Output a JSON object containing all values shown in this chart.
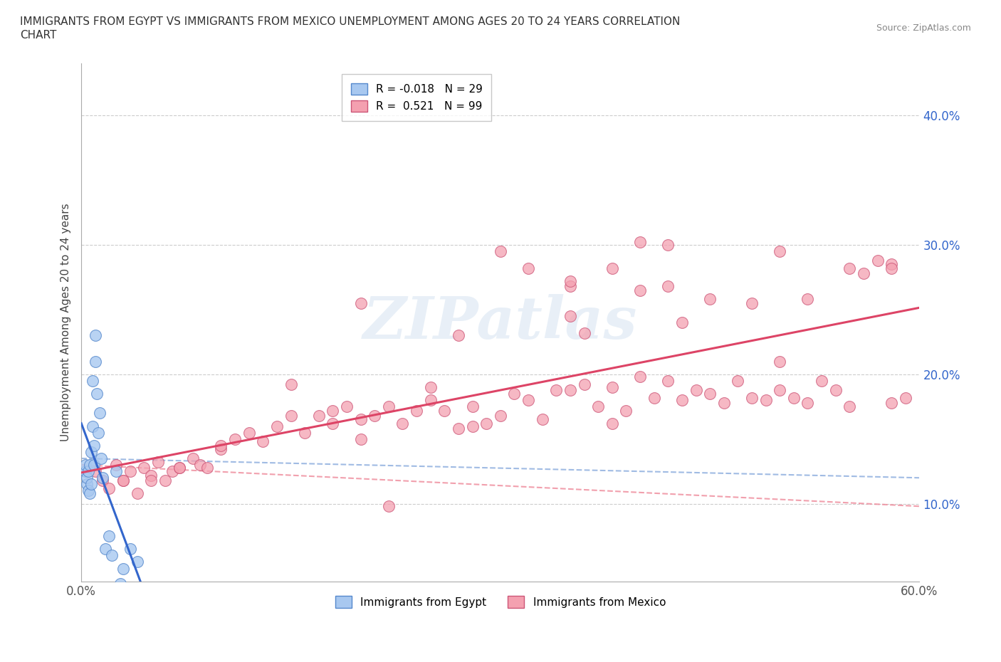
{
  "title_line1": "IMMIGRANTS FROM EGYPT VS IMMIGRANTS FROM MEXICO UNEMPLOYMENT AMONG AGES 20 TO 24 YEARS CORRELATION",
  "title_line2": "CHART",
  "source": "Source: ZipAtlas.com",
  "ylabel": "Unemployment Among Ages 20 to 24 years",
  "xlim": [
    0.0,
    0.6
  ],
  "ylim": [
    0.04,
    0.44
  ],
  "yticks": [
    0.1,
    0.2,
    0.3,
    0.4
  ],
  "ytick_labels": [
    "10.0%",
    "20.0%",
    "30.0%",
    "40.0%"
  ],
  "xticks": [
    0.0,
    0.1,
    0.2,
    0.3,
    0.4,
    0.5,
    0.6
  ],
  "egypt_color": "#a8c8f0",
  "egypt_edge_color": "#5588cc",
  "mexico_color": "#f4a0b0",
  "mexico_edge_color": "#cc5577",
  "egypt_line_color": "#3366cc",
  "mexico_line_color": "#dd4466",
  "egypt_dash_color": "#88aadd",
  "mexico_dash_color": "#ee8899",
  "legend_egypt_label": "R = -0.018   N = 29",
  "legend_mexico_label": "R =  0.521   N = 99",
  "watermark_text": "ZIPatlas",
  "egypt_x": [
    0.003,
    0.003,
    0.004,
    0.004,
    0.005,
    0.005,
    0.006,
    0.006,
    0.007,
    0.007,
    0.008,
    0.008,
    0.009,
    0.009,
    0.01,
    0.01,
    0.011,
    0.012,
    0.013,
    0.014,
    0.015,
    0.017,
    0.02,
    0.022,
    0.025,
    0.028,
    0.03,
    0.035,
    0.04
  ],
  "egypt_y": [
    0.125,
    0.13,
    0.115,
    0.12,
    0.11,
    0.125,
    0.108,
    0.13,
    0.115,
    0.14,
    0.16,
    0.195,
    0.13,
    0.145,
    0.21,
    0.23,
    0.185,
    0.155,
    0.17,
    0.135,
    0.12,
    0.065,
    0.075,
    0.06,
    0.125,
    0.038,
    0.05,
    0.065,
    0.055
  ],
  "mexico_x": [
    0.01,
    0.015,
    0.02,
    0.025,
    0.03,
    0.035,
    0.04,
    0.045,
    0.05,
    0.055,
    0.06,
    0.065,
    0.07,
    0.08,
    0.085,
    0.09,
    0.1,
    0.11,
    0.12,
    0.13,
    0.14,
    0.15,
    0.16,
    0.17,
    0.18,
    0.18,
    0.19,
    0.2,
    0.2,
    0.21,
    0.22,
    0.23,
    0.24,
    0.25,
    0.25,
    0.26,
    0.27,
    0.28,
    0.29,
    0.3,
    0.31,
    0.32,
    0.33,
    0.34,
    0.35,
    0.35,
    0.36,
    0.37,
    0.38,
    0.39,
    0.4,
    0.4,
    0.41,
    0.42,
    0.43,
    0.44,
    0.45,
    0.46,
    0.47,
    0.48,
    0.48,
    0.49,
    0.5,
    0.5,
    0.51,
    0.52,
    0.53,
    0.54,
    0.55,
    0.56,
    0.57,
    0.58,
    0.58,
    0.59,
    0.3,
    0.35,
    0.4,
    0.35,
    0.38,
    0.42,
    0.45,
    0.5,
    0.55,
    0.58,
    0.32,
    0.27,
    0.2,
    0.15,
    0.1,
    0.07,
    0.05,
    0.03,
    0.22,
    0.28,
    0.36,
    0.43,
    0.52,
    0.42,
    0.38
  ],
  "mexico_y": [
    0.125,
    0.118,
    0.112,
    0.13,
    0.118,
    0.125,
    0.108,
    0.128,
    0.122,
    0.132,
    0.118,
    0.125,
    0.128,
    0.135,
    0.13,
    0.128,
    0.142,
    0.15,
    0.155,
    0.148,
    0.16,
    0.168,
    0.155,
    0.168,
    0.162,
    0.172,
    0.175,
    0.15,
    0.165,
    0.168,
    0.175,
    0.162,
    0.172,
    0.18,
    0.19,
    0.172,
    0.158,
    0.175,
    0.162,
    0.168,
    0.185,
    0.18,
    0.165,
    0.188,
    0.245,
    0.188,
    0.192,
    0.175,
    0.19,
    0.172,
    0.198,
    0.265,
    0.182,
    0.195,
    0.18,
    0.188,
    0.185,
    0.178,
    0.195,
    0.182,
    0.255,
    0.18,
    0.188,
    0.21,
    0.182,
    0.178,
    0.195,
    0.188,
    0.175,
    0.278,
    0.288,
    0.178,
    0.285,
    0.182,
    0.295,
    0.268,
    0.302,
    0.272,
    0.282,
    0.3,
    0.258,
    0.295,
    0.282,
    0.282,
    0.282,
    0.23,
    0.255,
    0.192,
    0.145,
    0.128,
    0.118,
    0.118,
    0.098,
    0.16,
    0.232,
    0.24,
    0.258,
    0.268,
    0.162
  ]
}
